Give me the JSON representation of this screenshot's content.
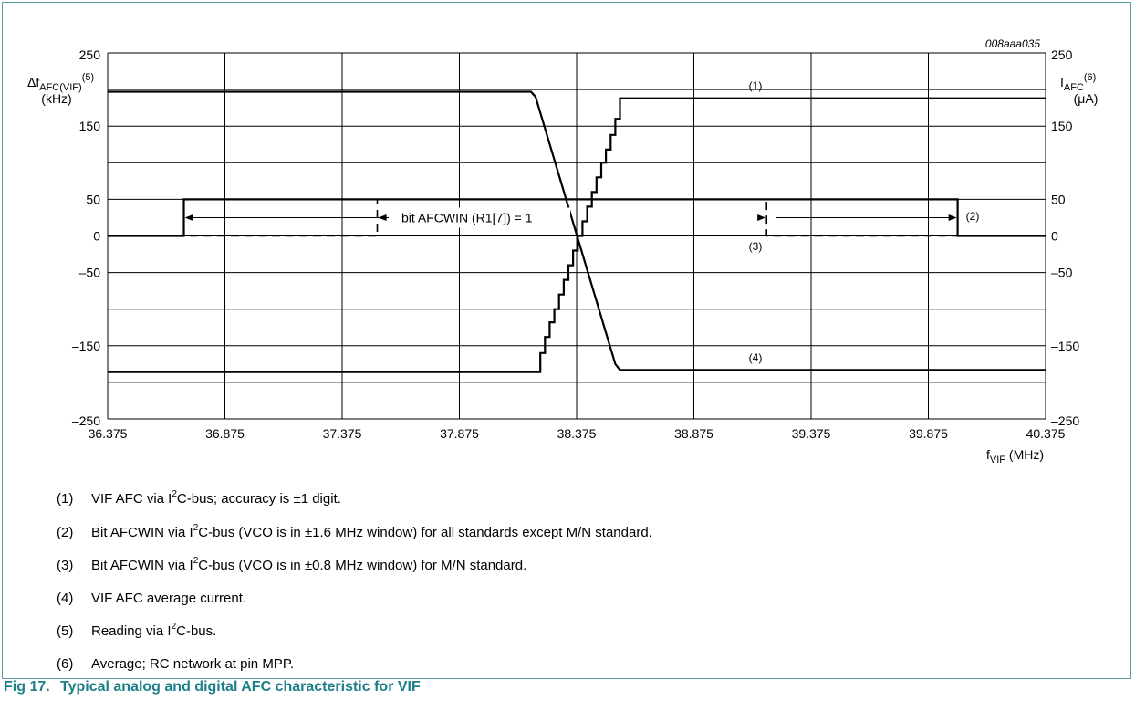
{
  "chart_data": {
    "type": "line",
    "id_label": "008aaa035",
    "x_axis": {
      "ticks": [
        "36.375",
        "36.875",
        "37.375",
        "37.875",
        "38.375",
        "38.875",
        "39.375",
        "39.875",
        "40.375"
      ],
      "xlim": [
        36.375,
        40.375
      ],
      "label": "f",
      "label_sub": "VIF",
      "label_unit": " (MHz)"
    },
    "y_left": {
      "ticks": [
        "250",
        "150",
        "50",
        "0",
        "–50",
        "–150",
        "–250"
      ],
      "tick_values": [
        250,
        150,
        50,
        0,
        -50,
        -150,
        -250
      ],
      "ylim": [
        -250,
        250
      ],
      "label": "Δf",
      "label_sub": "AFC(VIF)",
      "label_sup": "(5)",
      "unit": "(kHz)"
    },
    "y_right": {
      "ticks": [
        "250",
        "150",
        "50",
        "0",
        "–50",
        "–150",
        "–250"
      ],
      "tick_values": [
        250,
        150,
        50,
        0,
        -50,
        -150,
        -250
      ],
      "label": "I",
      "label_sub": "AFC",
      "label_sup": "(6)",
      "unit": "(μA)"
    },
    "grid": true,
    "series": [
      {
        "label": "(1)",
        "style": "solid-stair",
        "points": [
          [
            36.375,
            -186
          ],
          [
            38.22,
            -186
          ],
          [
            38.22,
            -160
          ],
          [
            38.24,
            -160
          ],
          [
            38.24,
            -138
          ],
          [
            38.26,
            -138
          ],
          [
            38.26,
            -118
          ],
          [
            38.28,
            -118
          ],
          [
            38.28,
            -100
          ],
          [
            38.3,
            -100
          ],
          [
            38.3,
            -80
          ],
          [
            38.32,
            -80
          ],
          [
            38.32,
            -60
          ],
          [
            38.34,
            -60
          ],
          [
            38.34,
            -40
          ],
          [
            38.36,
            -40
          ],
          [
            38.36,
            -20
          ],
          [
            38.38,
            -20
          ],
          [
            38.38,
            0
          ],
          [
            38.4,
            0
          ],
          [
            38.4,
            20
          ],
          [
            38.42,
            20
          ],
          [
            38.42,
            40
          ],
          [
            38.44,
            40
          ],
          [
            38.44,
            60
          ],
          [
            38.46,
            60
          ],
          [
            38.46,
            80
          ],
          [
            38.48,
            80
          ],
          [
            38.48,
            100
          ],
          [
            38.5,
            100
          ],
          [
            38.5,
            118
          ],
          [
            38.52,
            118
          ],
          [
            38.52,
            138
          ],
          [
            38.54,
            138
          ],
          [
            38.54,
            160
          ],
          [
            38.56,
            160
          ],
          [
            38.56,
            188
          ],
          [
            40.375,
            188
          ]
        ]
      },
      {
        "label": "(2)",
        "style": "solid",
        "points": [
          [
            36.375,
            0
          ],
          [
            36.7,
            0
          ],
          [
            36.7,
            50
          ],
          [
            40.0,
            50
          ],
          [
            40.0,
            0
          ],
          [
            40.375,
            0
          ]
        ]
      },
      {
        "label": "(3)",
        "style": "dashed",
        "points": [
          [
            36.375,
            0
          ],
          [
            37.525,
            0
          ],
          [
            37.525,
            50
          ],
          [
            39.185,
            50
          ],
          [
            39.185,
            0
          ],
          [
            40.375,
            0
          ]
        ]
      },
      {
        "label": "(4)",
        "style": "solid",
        "points": [
          [
            36.375,
            197
          ],
          [
            38.18,
            197
          ],
          [
            38.2,
            190
          ],
          [
            38.54,
            -175
          ],
          [
            38.56,
            -183
          ],
          [
            40.375,
            -183
          ]
        ]
      }
    ],
    "annotation": {
      "text": "bit AFCWIN (R1[7]) = 1",
      "y": 25,
      "outer_arrow_x": [
        36.7,
        40.0
      ],
      "inner_arrow_x": [
        37.525,
        39.185
      ]
    }
  },
  "notes": [
    {
      "num": "(1)",
      "pre": "VIF AFC via I",
      "sup": "2",
      "post": "C-bus; accuracy is ±1 digit."
    },
    {
      "num": "(2)",
      "pre": "Bit AFCWIN via I",
      "sup": "2",
      "post": "C-bus (VCO is in ±1.6 MHz window) for all standards except M/N standard."
    },
    {
      "num": "(3)",
      "pre": "Bit AFCWIN via I",
      "sup": "2",
      "post": "C-bus (VCO is in ±0.8 MHz window) for M/N standard."
    },
    {
      "num": "(4)",
      "pre": "VIF AFC average current.",
      "sup": "",
      "post": ""
    },
    {
      "num": "(5)",
      "pre": "Reading via I",
      "sup": "2",
      "post": "C-bus."
    },
    {
      "num": "(6)",
      "pre": "Average; RC network at pin MPP.",
      "sup": "",
      "post": ""
    }
  ],
  "caption": {
    "label": "Fig 17.",
    "text": "Typical analog and digital AFC characteristic for VIF"
  }
}
